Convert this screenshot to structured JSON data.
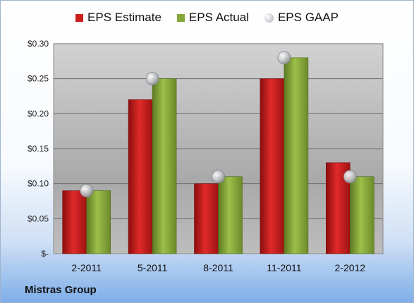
{
  "chart_data": {
    "type": "bar",
    "categories": [
      "2-2011",
      "5-2011",
      "8-2011",
      "11-2011",
      "2-2012"
    ],
    "series": [
      {
        "name": "EPS Estimate",
        "type": "bar",
        "color": "#cc1f1f",
        "values": [
          0.09,
          0.22,
          0.1,
          0.25,
          0.13
        ]
      },
      {
        "name": "EPS Actual",
        "type": "bar",
        "color": "#86a83a",
        "values": [
          0.09,
          0.25,
          0.11,
          0.28,
          0.11
        ]
      },
      {
        "name": "EPS GAAP",
        "type": "marker",
        "color": "#b8bcc2",
        "values": [
          0.09,
          0.25,
          0.11,
          0.28,
          0.11
        ]
      }
    ],
    "ylim": [
      0,
      0.3
    ],
    "yticks": [
      0,
      0.05,
      0.1,
      0.15,
      0.2,
      0.25,
      0.3
    ],
    "ytick_labels": [
      "$-",
      "$0.05",
      "$0.10",
      "$0.15",
      "$0.20",
      "$0.25",
      "$0.30"
    ],
    "grid": true,
    "legend_position": "top"
  },
  "company": "Mistras Group"
}
